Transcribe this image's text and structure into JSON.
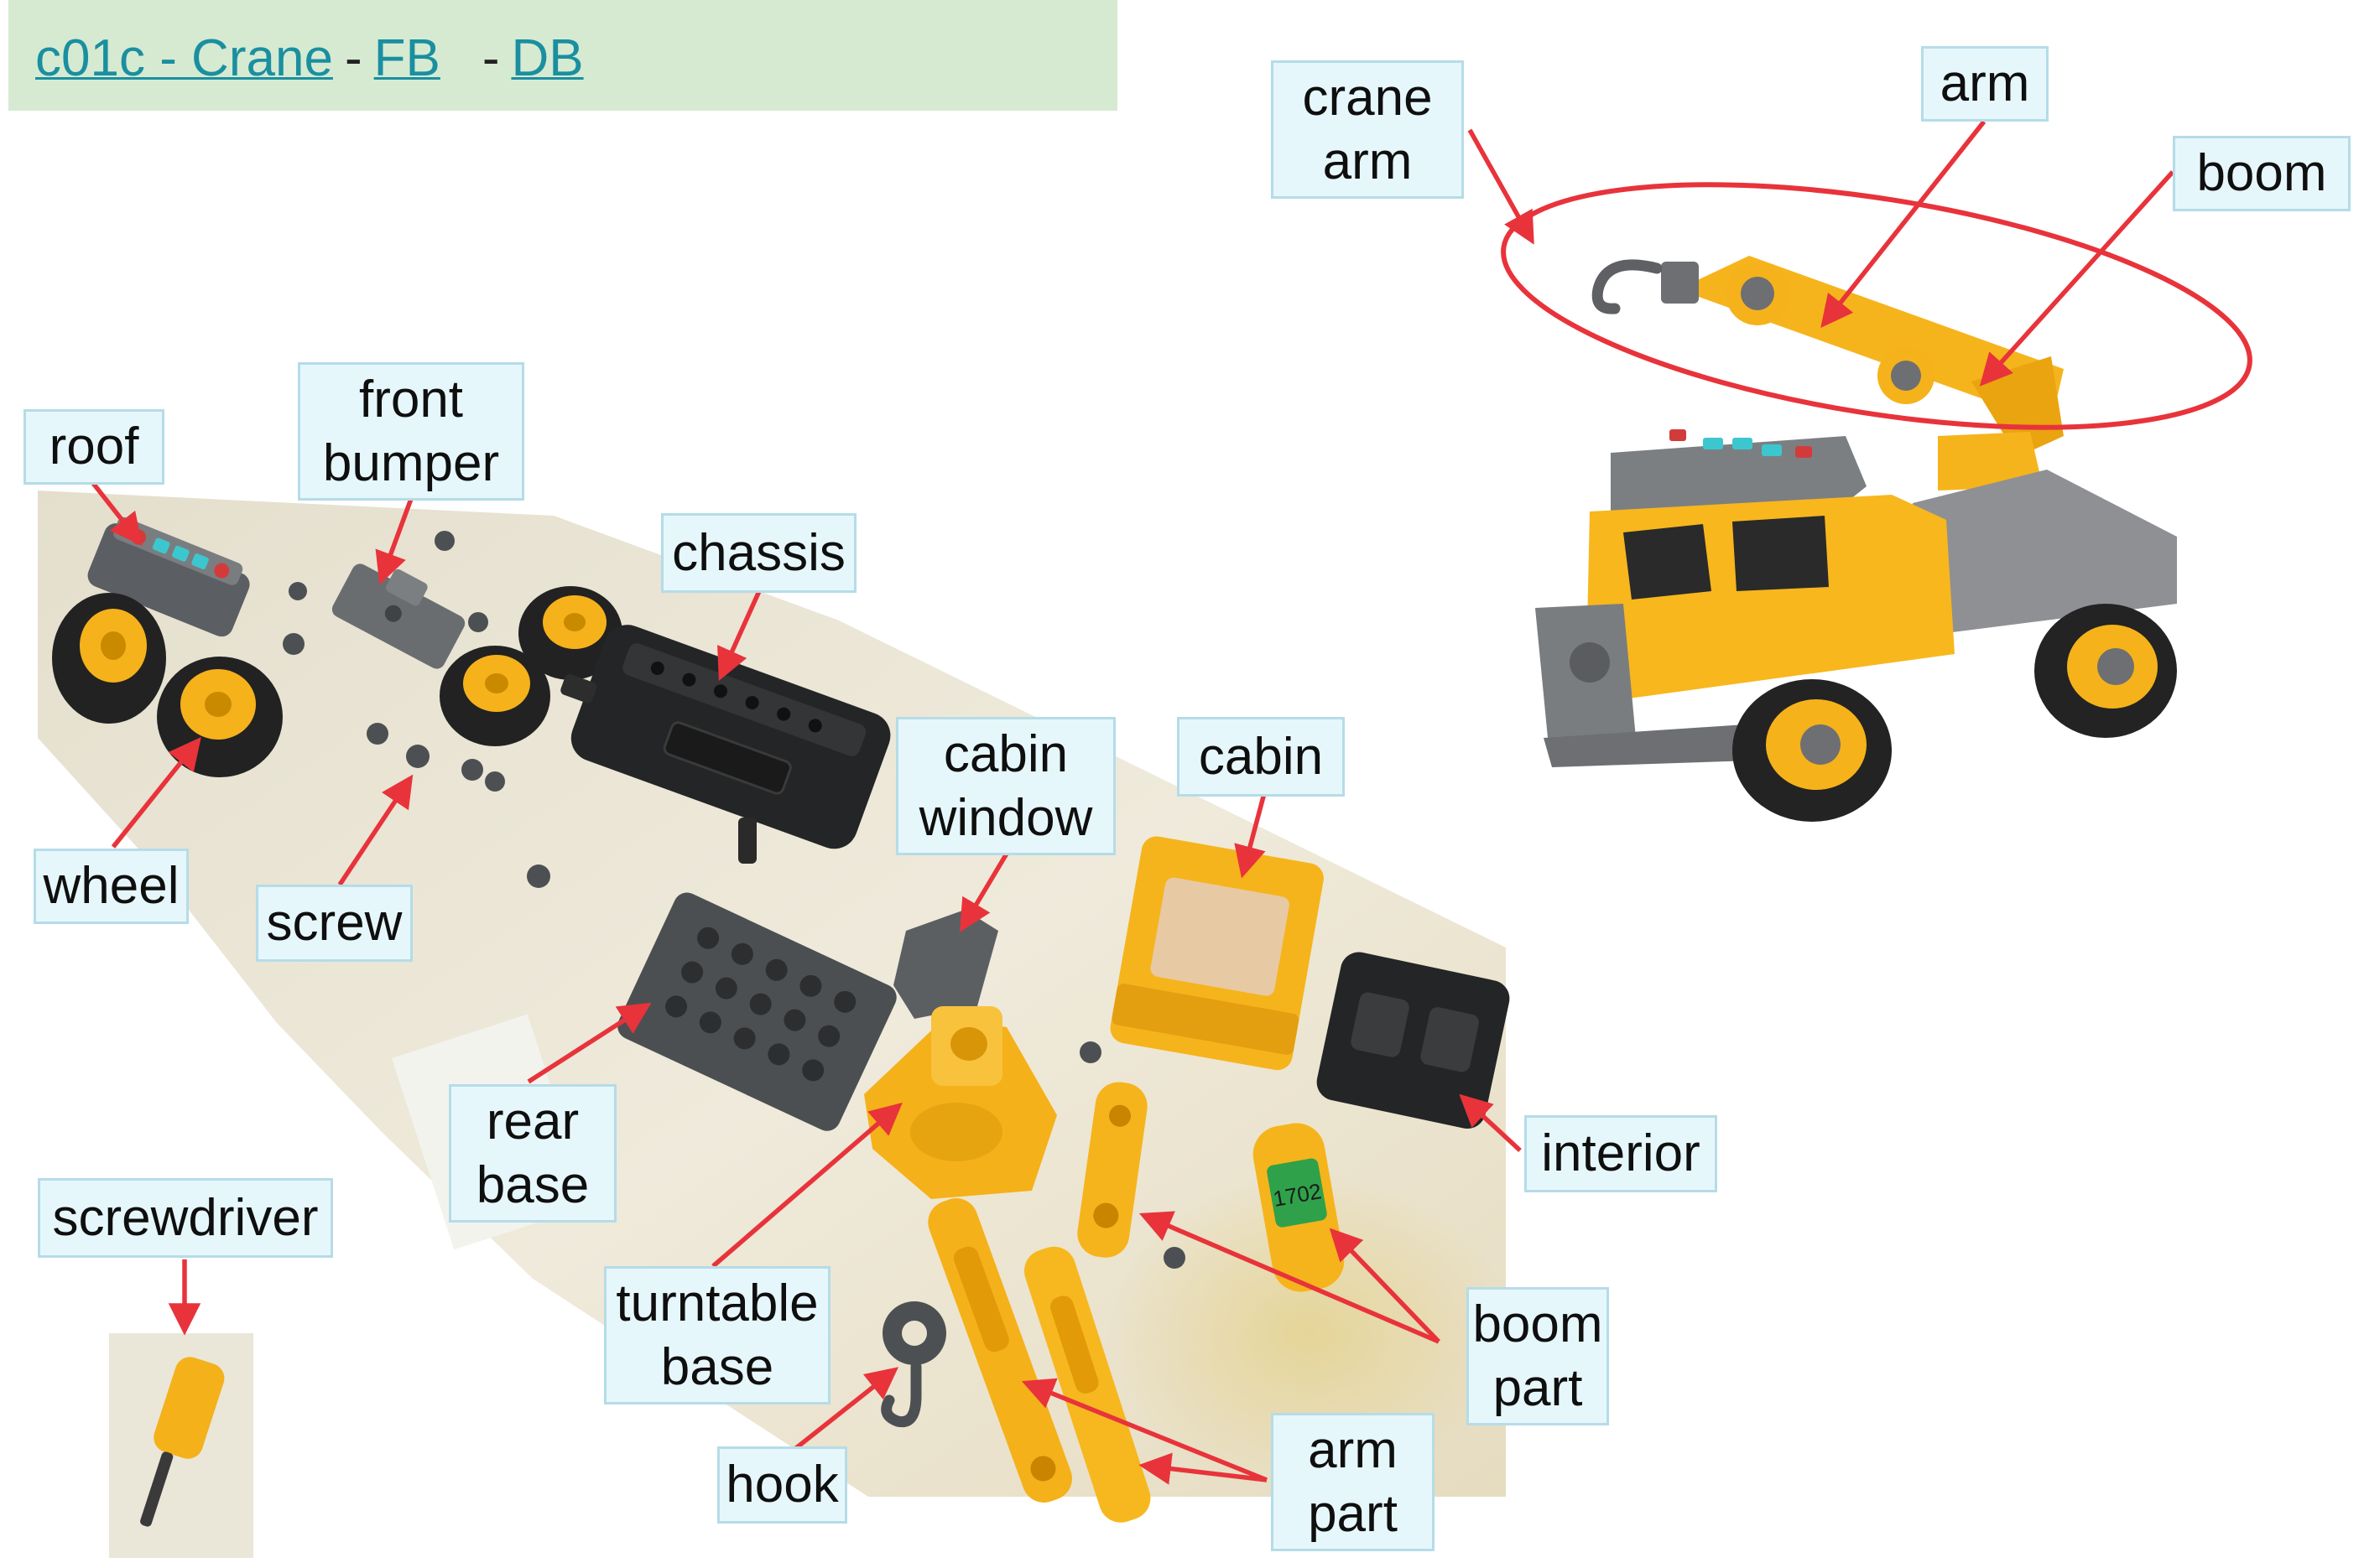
{
  "header": {
    "title_link": "c01c - Crane",
    "separator_1": "-",
    "fb_link": "FB",
    "separator_2": "-",
    "db_link": "DB"
  },
  "labels": {
    "crane_arm": [
      "crane",
      "arm"
    ],
    "arm": "arm",
    "boom": "boom",
    "roof": "roof",
    "front_bumper": [
      "front",
      "bumper"
    ],
    "chassis": "chassis",
    "wheel": "wheel",
    "screw": "screw",
    "cabin_window": [
      "cabin",
      "window"
    ],
    "cabin": "cabin",
    "rear_base": [
      "rear",
      "base"
    ],
    "interior": "interior",
    "screwdriver": "screwdriver",
    "turntable_base": [
      "turntable",
      "base"
    ],
    "boom_part": [
      "boom",
      "part"
    ],
    "hook": "hook",
    "arm_part": [
      "arm",
      "part"
    ]
  },
  "hook_sticker": "1702",
  "colors": {
    "header_bg": "#d6ead2",
    "link": "#1a8fa0",
    "label_bg": "#e6f7fc",
    "label_border": "#b5dce8",
    "arrow": "#e8333b",
    "toy_yellow": "#f7b71d",
    "toy_grey": "#6d6f72",
    "toy_black": "#2a2a2a"
  }
}
